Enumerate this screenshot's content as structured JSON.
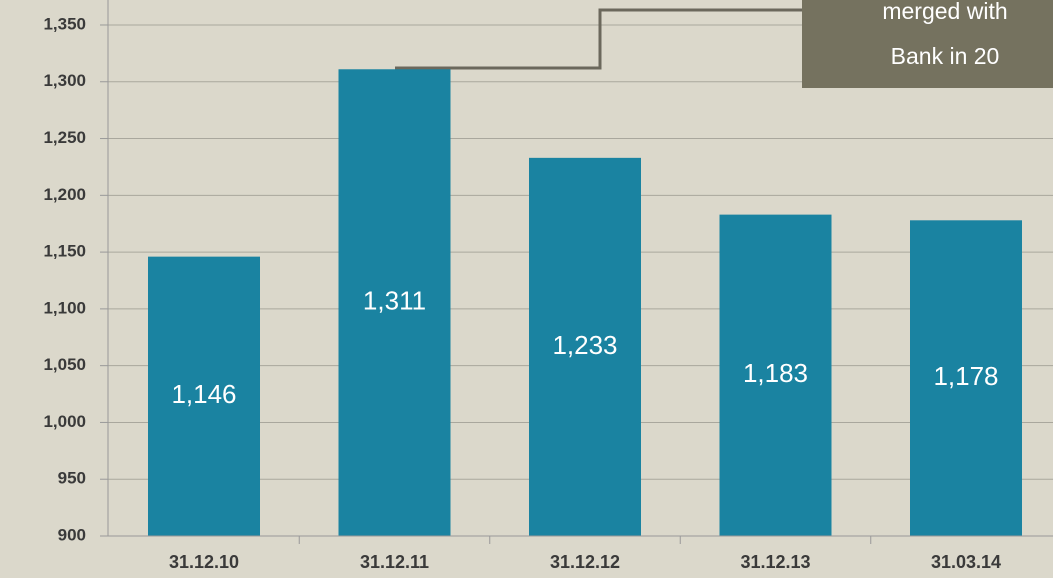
{
  "chart_data": {
    "type": "bar",
    "categories": [
      "31.12.10",
      "31.12.11",
      "31.12.12",
      "31.12.13",
      "31.03.14"
    ],
    "values": [
      1146,
      1311,
      1233,
      1183,
      1178
    ],
    "value_labels": [
      "1,146",
      "1,311",
      "1,233",
      "1,183",
      "1,178"
    ],
    "color": "#1a83a1",
    "ylim": [
      900,
      1372
    ],
    "yticks": [
      900,
      950,
      {
        "value": 1000,
        "label": "1,000"
      },
      {
        "value": 1050,
        "label": "1,050"
      },
      {
        "value": 1100,
        "label": "1,100"
      },
      {
        "value": 1150,
        "label": "1,150"
      },
      {
        "value": 1200,
        "label": "1,200"
      },
      {
        "value": 1250,
        "label": "1,250"
      },
      {
        "value": 1300,
        "label": "1,300"
      },
      {
        "value": 1350,
        "label": "1,350"
      }
    ],
    "grid": true,
    "annotations": [
      "merged with",
      "Bank in 20"
    ]
  }
}
